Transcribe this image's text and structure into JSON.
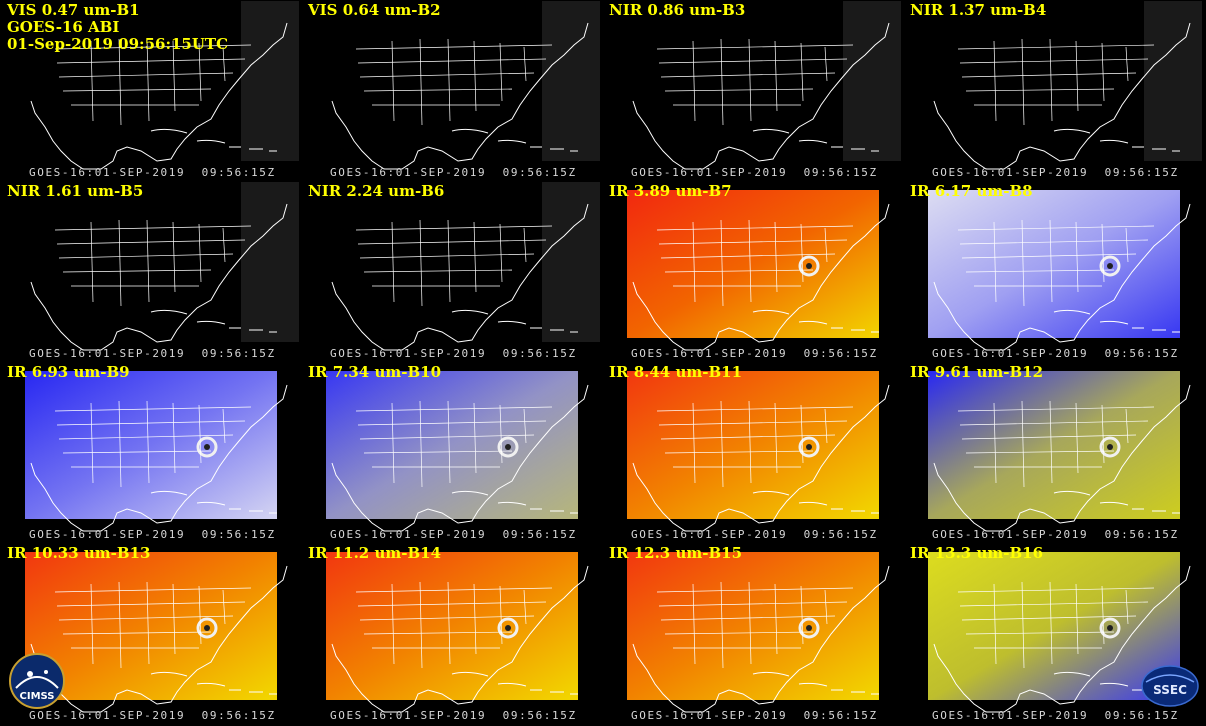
{
  "timestamp_label": "GOES-16:01-SEP-2019  09:56:15Z",
  "header_lines": [
    "GOES-16 ABI",
    "01-Sep-2019 09:56:15UTC"
  ],
  "panels": [
    {
      "title": "VIS 0.47 um-B1",
      "palette": "vis"
    },
    {
      "title": "VIS 0.64 um-B2",
      "palette": "vis"
    },
    {
      "title": "NIR 0.86 um-B3",
      "palette": "vis"
    },
    {
      "title": "NIR 1.37 um-B4",
      "palette": "vis"
    },
    {
      "title": "NIR 1.61 um-B5",
      "palette": "vis"
    },
    {
      "title": "NIR 2.24 um-B6",
      "palette": "vis"
    },
    {
      "title": "IR 3.89 um-B7",
      "palette": "ir-warm"
    },
    {
      "title": "IR 6.17 um-B8",
      "palette": "wv-light"
    },
    {
      "title": "IR 6.93 um-B9",
      "palette": "wv-blue"
    },
    {
      "title": "IR 7.34 um-B10",
      "palette": "wv-mixed"
    },
    {
      "title": "IR 8.44 um-B11",
      "palette": "ir-orange"
    },
    {
      "title": "IR 9.61 um-B12",
      "palette": "ozone"
    },
    {
      "title": "IR 10.33 um-B13",
      "palette": "ir-orange"
    },
    {
      "title": "IR 11.2 um-B14",
      "palette": "ir-orange"
    },
    {
      "title": "IR 12.3 um-B15",
      "palette": "ir-orange"
    },
    {
      "title": "IR 13.3 um-B16",
      "palette": "co2"
    }
  ],
  "logos": {
    "left": "CIMSS",
    "right": "SSEC"
  },
  "colors": {
    "title": "#ffff00",
    "background": "#000000",
    "map_lines": "#ffffff"
  }
}
